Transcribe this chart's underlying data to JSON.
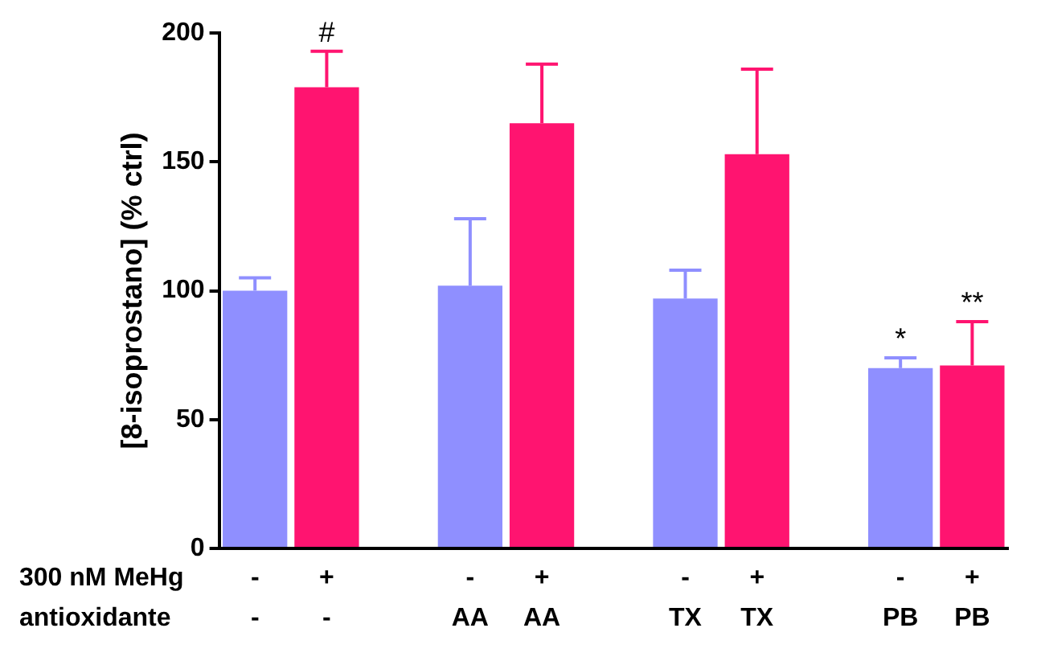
{
  "chart_data": {
    "type": "bar",
    "ylabel": "[8-isoprostano] (% ctrl)",
    "categories": [
      "-\n-",
      "+\n-",
      null,
      "-\nAA",
      "+\nAA",
      null,
      "-\nTX",
      "+\nTX",
      null,
      "-\nPB",
      "+\nPB"
    ],
    "values": [
      100,
      179,
      null,
      102,
      165,
      null,
      97,
      153,
      null,
      70,
      71
    ],
    "colors": [
      "#8f8fff",
      "#ff1470",
      null,
      "#8f8fff",
      "#ff1470",
      null,
      "#8f8fff",
      "#ff1470",
      null,
      "#8f8fff",
      "#ff1470"
    ],
    "errors": [
      [
        100,
        105
      ],
      [
        179,
        193
      ],
      null,
      [
        102,
        128
      ],
      [
        165,
        188
      ],
      null,
      [
        97,
        108
      ],
      [
        153,
        186
      ],
      null,
      [
        70,
        74
      ],
      [
        71,
        88
      ]
    ],
    "ylim": [
      0,
      200
    ],
    "yticks": [
      0,
      50,
      100,
      150,
      200
    ],
    "grid": false,
    "legend": false,
    "annotations": [
      "300 nM MeHg",
      "antioxidante",
      {
        "text": "#",
        "x": "+\n-",
        "y": 193
      },
      {
        "text": "*",
        "x": "-\nPB",
        "y": 74
      },
      {
        "text": "**",
        "x": "+\nPB",
        "y": 88
      }
    ]
  }
}
